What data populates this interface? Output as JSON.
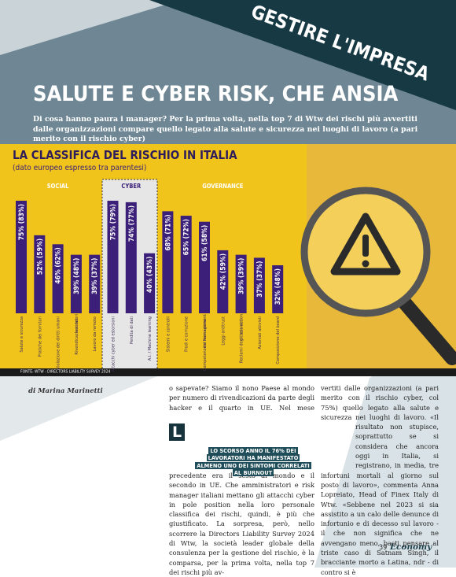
{
  "section": "GESTIRE L'IMPRESA",
  "headline": "SALUTE E CYBER RISK, CHE ANSIA",
  "standfirst": "Di cosa hanno paura i manager? Per la prima volta, nella top 7 di Wtw dei rischi più avvertiti dalle organizzazioni compare quello legato alla salute e sicurezza nei luoghi di lavoro (a pari merito con il rischio cyber)",
  "chart_data": {
    "type": "bar",
    "title": "LA CLASSIFICA DEL RISCHIO IN ITALIA",
    "subtitle": "(dato europeo espresso tra parentesi)",
    "groups": [
      "SOCIAL",
      "CYBER",
      "GOVERNANCE"
    ],
    "categories": [
      "Salute e sicurezza",
      "Pratiche dei fornitori",
      "Violazione dei diritti umani",
      "Rivendicazioni dei lavoratori",
      "Lavoro da remoto",
      "Attacchi cyber ed estorsioni",
      "Perdita di dati",
      "A.I. / Machine learning",
      "Sistemi e controlli",
      "Frodi e corruzione",
      "Competenze e formazione del management",
      "Leggi antitrust",
      "Reclami degli azionisti e class action",
      "Azionisti attivisti",
      "Composizione del board"
    ],
    "values": [
      75,
      52,
      46,
      39,
      39,
      75,
      74,
      40,
      68,
      65,
      61,
      42,
      39,
      37,
      32
    ],
    "value_labels": [
      "75% (83%)",
      "52% (59%)",
      "46% (62%)",
      "39% (48%)",
      "39% (37%)",
      "75% (79%)",
      "74% (77%)",
      "40% (43%)",
      "68% (71%)",
      "65% (72%)",
      "61% (58%)",
      "42% (59%)",
      "39% (39%)",
      "37% (37%)",
      "32% (48%)"
    ],
    "color": "#3b1f78",
    "source": "FONTE: WTW - DIRECTORS LIABILITY SURVEY 2024"
  },
  "byline": "di Marina Marinetti",
  "dropcap": "L",
  "column1": "o sapevate? Siamo il nono Paese al mondo per numero di rivendicazioni da parte degli hacker e il quarto in UE. Nel mese precedente era il sesto al mondo e il secondo in UE. Che amministratori e risk manager italiani mettano gli attacchi cyber in pole position nella loro personale classifica dei rischi, quindi, è più che giustificato. La sorpresa, però, nello scorrere la Directors Liability Survey 2024 di Wtw, la società leader globale della consulenza per la gestione del rischio, è la comparsa, per la prima volta, nella top 7 dei rischi più av-",
  "column2": "vertiti dalle organizzazioni (a pari merito con il rischio cyber, col 75%) quello legato alla salute e sicurezza nei luoghi di lavoro. «Il risultato non stupisce, soprattutto se si considera che ancora oggi in Italia, si registrano, in media, tre infortuni mortali al giorno sul posto di lavoro», commenta Anna Lopreiato, Head of Finex Italy di Wtw. «Sebbene nel 2023 si sia assistito a un calo delle denunce di infortunio e di decesso sul lavoro - il che non significa che ne avvengano meno, basti pensare al triste caso di Satnam Singh, il bracciante morto a Latina, ndr - di contro si è",
  "pull_quote": "LO SCORSO ANNO IL 76% DEI LAVORATORI HA MANIFESTATO ALMENO UNO DEI SINTOMI CORRELATI AL BURNOUT",
  "page_number": "39",
  "magazine": "Economy"
}
